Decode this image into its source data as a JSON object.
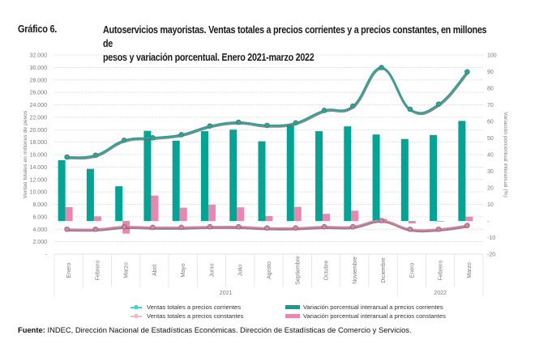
{
  "header": {
    "label": "Gráfico 6.",
    "title_line1": "Autoservicios mayoristas. Ventas totales a precios corrientes y a precios constantes, en millones de",
    "title_line2": "pesos y variación porcentual. Enero 2021-marzo 2022"
  },
  "chart_data": {
    "type": "bar",
    "combo": "bars (right axis) + lines (left axis)",
    "title": "Autoservicios mayoristas. Ventas totales a precios corrientes y a precios constantes, en millones de pesos y variación porcentual. Enero 2021-marzo 2022",
    "categories": [
      "Enero",
      "Febrero",
      "Marzo",
      "Abril",
      "Mayo",
      "Junio",
      "Julio",
      "Agosto",
      "Septiembre",
      "Octubre",
      "Noviembre",
      "Diciembre",
      "Enero",
      "Febrero",
      "Marzo"
    ],
    "year_groups": [
      {
        "label": "2021",
        "count": 12
      },
      {
        "label": "2022",
        "count": 3
      }
    ],
    "ylabel": "Ventas totales en millones de pesos",
    "y2label": "Variación porcentual interanual (%)",
    "ylim": [
      0,
      32000
    ],
    "y2lim": [
      -20,
      100
    ],
    "yticks": [
      "-",
      "2.000",
      "4.000",
      "6.000",
      "8.000",
      "10.000",
      "12.000",
      "14.000",
      "16.000",
      "18.000",
      "20.000",
      "22.000",
      "24.000",
      "26.000",
      "28.000",
      "30.000",
      "32.000"
    ],
    "y2ticks": [
      "-20",
      "-10",
      "-",
      "10",
      "20",
      "30",
      "40",
      "50",
      "60",
      "70",
      "80",
      "90",
      "100"
    ],
    "grid": true,
    "legend_position": "bottom",
    "series": [
      {
        "name": "Ventas totales a precios corrientes",
        "kind": "line",
        "axis": "left",
        "color": "#1fa99a",
        "values": [
          15600,
          15900,
          18300,
          18700,
          19200,
          20600,
          21200,
          20700,
          21100,
          23100,
          23800,
          30000,
          23300,
          24100,
          29300
        ]
      },
      {
        "name": "Ventas totales a precios constantes",
        "kind": "line",
        "axis": "left",
        "color": "#e07aa8",
        "values": [
          4000,
          4000,
          4400,
          4300,
          4300,
          4400,
          4400,
          4200,
          4200,
          4400,
          4400,
          5400,
          4000,
          4000,
          4600
        ]
      },
      {
        "name": "Variación porcentual interanual a precios corrientes",
        "kind": "bar",
        "axis": "right",
        "color": "#00a596",
        "values": [
          36.6,
          31.4,
          20.9,
          54.3,
          48.4,
          54.1,
          55.0,
          48.0,
          57.8,
          54.1,
          57.0,
          52.1,
          49.4,
          51.8,
          60.3
        ]
      },
      {
        "name": "Variación porcentual interanual a precios constantes",
        "kind": "bar",
        "axis": "right",
        "color": "#ec86b0",
        "values": [
          8.3,
          2.8,
          -7.6,
          15.3,
          8.0,
          9.8,
          8.2,
          3.0,
          8.5,
          4.3,
          6.2,
          1.3,
          -1.5,
          -0.4,
          2.6
        ]
      }
    ]
  },
  "legend": {
    "items": [
      {
        "label": "Ventas totales a precios corrientes",
        "color": "#2fe0d2"
      },
      {
        "label": "Ventas totales a precios constantes",
        "color": "#f2b8cf"
      },
      {
        "label": "Variación porcentual interanual a precios corrientes",
        "color": "#00a596"
      },
      {
        "label": "Variación porcentual interanual a precios constantes",
        "color": "#ec86b0"
      }
    ]
  },
  "footer": {
    "source_label": "Fuente:",
    "source_text": " INDEC, Dirección Nacional de Estadísticas Económicas. Dirección de Estadísticas de Comercio y Servicios."
  }
}
